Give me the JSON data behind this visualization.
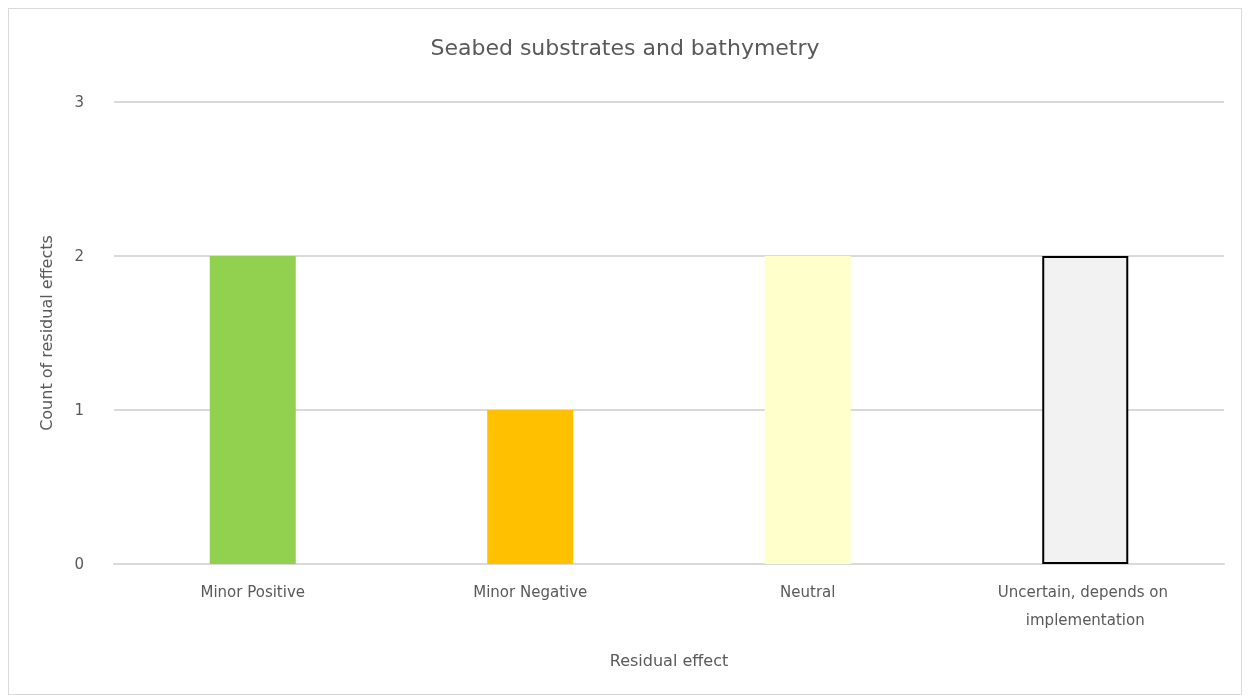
{
  "chart_data": {
    "type": "bar",
    "title": "Seabed substrates and bathymetry",
    "xlabel": "Residual effect",
    "ylabel": "Count of residual effects",
    "categories": [
      "Minor Positive",
      "Minor Negative",
      "Neutral",
      "Uncertain, depends on implementation"
    ],
    "values": [
      2,
      1,
      2,
      2
    ],
    "colors": [
      "#92d050",
      "#ffc000",
      "#ffffcc",
      "#f2f2f2"
    ],
    "ylim": [
      0,
      3
    ],
    "yticks": [
      0,
      1,
      2,
      3
    ],
    "grid": "y"
  }
}
